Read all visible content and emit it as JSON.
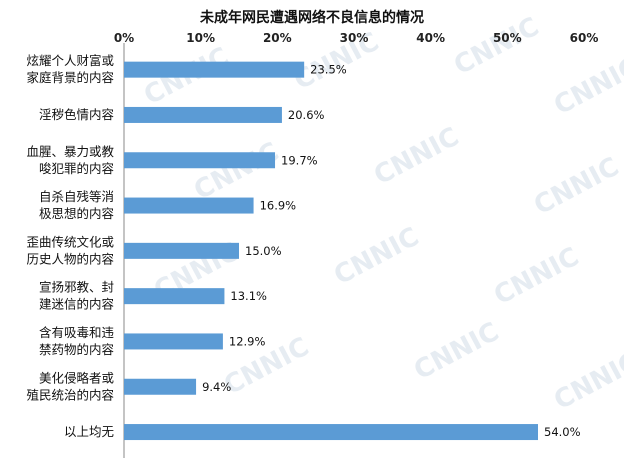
{
  "chart_data": {
    "type": "bar",
    "orientation": "horizontal",
    "title": "未成年网民遭遇网络不良信息的情况",
    "watermark": "CNNIC",
    "categories": [
      [
        "炫耀个人财富或",
        "家庭背景的内容"
      ],
      [
        "淫秽色情内容"
      ],
      [
        "血腥、暴力或教",
        "唆犯罪的内容"
      ],
      [
        "自杀自残等消",
        "极思想的内容"
      ],
      [
        "歪曲传统文化或",
        "历史人物的内容"
      ],
      [
        "宣扬邪教、封",
        "建迷信的内容"
      ],
      [
        "含有吸毒和违",
        "禁药物的内容"
      ],
      [
        "美化侵略者或",
        "殖民统治的内容"
      ],
      [
        "以上均无"
      ]
    ],
    "values": [
      23.5,
      20.6,
      19.7,
      16.9,
      15.0,
      13.1,
      12.9,
      9.4,
      54.0
    ],
    "value_labels": [
      "23.5%",
      "20.6%",
      "19.7%",
      "16.9%",
      "15.0%",
      "13.1%",
      "12.9%",
      "9.4%",
      "54.0%"
    ],
    "xlim": [
      0,
      60
    ],
    "xticks": [
      0,
      10,
      20,
      30,
      40,
      50,
      60
    ],
    "xtick_labels": [
      "0%",
      "10%",
      "20%",
      "30%",
      "40%",
      "50%",
      "60%"
    ],
    "axis_position": "top",
    "grid": false,
    "bar_color": "#5b9bd5"
  }
}
